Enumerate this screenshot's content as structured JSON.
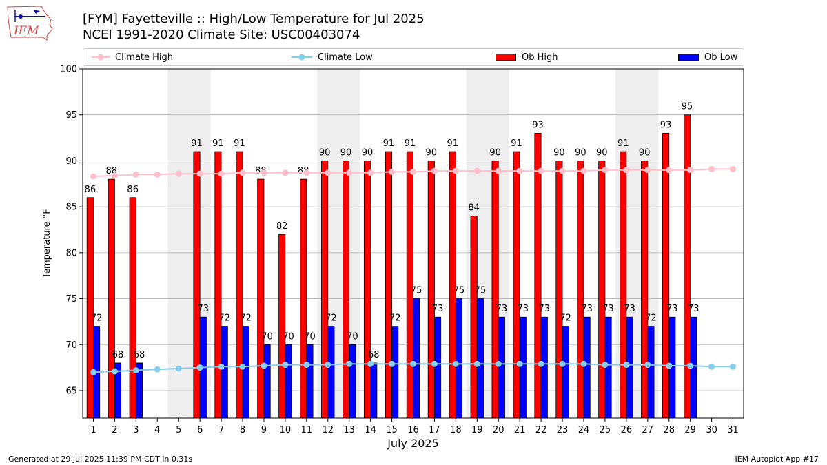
{
  "header": {
    "logo_text": "IEM",
    "title_line1": "[FYM] Fayetteville :: High/Low Temperature for Jul 2025",
    "title_line2": "NCEI 1991-2020 Climate Site: USC00403074"
  },
  "legend": {
    "climate_high": "Climate High",
    "climate_low": "Climate Low",
    "ob_high": "Ob High",
    "ob_low": "Ob Low"
  },
  "footer": {
    "generated": "Generated at 29 Jul 2025 11:39 PM CDT in 0.31s",
    "app": "IEM Autoplot App #17"
  },
  "colors": {
    "ob_high": "#ff0000",
    "ob_low": "#0000ff",
    "climate_high": "#ffc0cb",
    "climate_low": "#87ceeb",
    "weekend_shade": "#eeeeee",
    "grid": "#b0b0b0"
  },
  "chart_data": {
    "type": "bar",
    "xlabel": "July 2025",
    "ylabel": "Temperature °F",
    "ylim": [
      62,
      100
    ],
    "yticks": [
      65,
      70,
      75,
      80,
      85,
      90,
      95,
      100
    ],
    "grid": "horizontal",
    "legend_position": "top",
    "categories": [
      "1",
      "2",
      "3",
      "4",
      "5",
      "6",
      "7",
      "8",
      "9",
      "10",
      "11",
      "12",
      "13",
      "14",
      "15",
      "16",
      "17",
      "18",
      "19",
      "20",
      "21",
      "22",
      "23",
      "24",
      "25",
      "26",
      "27",
      "28",
      "29",
      "30",
      "31"
    ],
    "weekend_shading": [
      [
        5,
        6
      ],
      [
        12,
        13
      ],
      [
        19,
        20
      ],
      [
        26,
        27
      ]
    ],
    "series": [
      {
        "name": "Ob High",
        "kind": "bar",
        "values": [
          86,
          88,
          86,
          null,
          null,
          91,
          91,
          91,
          88,
          82,
          88,
          90,
          90,
          90,
          91,
          91,
          90,
          91,
          84,
          90,
          91,
          93,
          90,
          90,
          90,
          91,
          90,
          93,
          95,
          null,
          null
        ]
      },
      {
        "name": "Ob Low",
        "kind": "bar",
        "values": [
          72,
          68,
          68,
          null,
          null,
          73,
          72,
          72,
          70,
          70,
          70,
          72,
          70,
          68,
          72,
          75,
          73,
          75,
          75,
          73,
          73,
          73,
          72,
          73,
          73,
          73,
          72,
          73,
          73,
          null,
          null
        ]
      },
      {
        "name": "Climate High",
        "kind": "line",
        "values": [
          88.3,
          88.4,
          88.5,
          88.5,
          88.6,
          88.6,
          88.6,
          88.7,
          88.7,
          88.7,
          88.7,
          88.7,
          88.7,
          88.7,
          88.8,
          88.8,
          88.9,
          88.9,
          88.9,
          88.9,
          88.9,
          88.9,
          88.9,
          88.9,
          89.0,
          89.0,
          89.0,
          89.0,
          89.0,
          89.1,
          89.1
        ]
      },
      {
        "name": "Climate Low",
        "kind": "line",
        "values": [
          67.0,
          67.1,
          67.2,
          67.3,
          67.4,
          67.5,
          67.6,
          67.6,
          67.7,
          67.8,
          67.8,
          67.8,
          67.9,
          67.9,
          67.9,
          67.9,
          67.9,
          67.9,
          67.9,
          67.9,
          67.9,
          67.9,
          67.9,
          67.9,
          67.8,
          67.8,
          67.8,
          67.7,
          67.7,
          67.6,
          67.6
        ]
      }
    ]
  }
}
